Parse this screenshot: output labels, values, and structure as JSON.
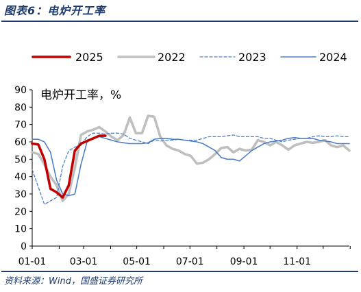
{
  "figure_title": "图表6：电炉开工率",
  "source_text": "资料来源：Wind，国盛证券研究所",
  "chart_data": {
    "type": "line",
    "title": "",
    "ylabel": "电炉开工率，%",
    "xlabel": "",
    "ylim": [
      0,
      90
    ],
    "yticks": [
      0,
      10,
      20,
      30,
      40,
      50,
      60,
      70,
      80,
      90
    ],
    "xlim": [
      "01-01",
      "12-31"
    ],
    "xticks": [
      "01-01",
      "03-01",
      "05-01",
      "07-01",
      "09-01",
      "11-01"
    ],
    "legend_position": "top",
    "grid": false,
    "series": [
      {
        "name": "2025",
        "color": "#c00000",
        "style": "solid-thick",
        "points": [
          [
            "01-01",
            59
          ],
          [
            "01-08",
            58.5
          ],
          [
            "01-15",
            50
          ],
          [
            "01-22",
            33
          ],
          [
            "01-29",
            31
          ],
          [
            "02-05",
            28
          ],
          [
            "02-12",
            35
          ],
          [
            "02-19",
            55
          ],
          [
            "02-26",
            59
          ],
          [
            "03-05",
            60.5
          ],
          [
            "03-12",
            62
          ],
          [
            "03-19",
            63.5
          ],
          [
            "03-26",
            63.5
          ]
        ]
      },
      {
        "name": "2022",
        "color": "#bfbfbf",
        "style": "solid-thick",
        "points": [
          [
            "01-01",
            54
          ],
          [
            "01-08",
            53
          ],
          [
            "01-15",
            47
          ],
          [
            "01-22",
            40
          ],
          [
            "01-29",
            35
          ],
          [
            "02-05",
            26
          ],
          [
            "02-12",
            30
          ],
          [
            "02-19",
            45
          ],
          [
            "02-26",
            64
          ],
          [
            "03-05",
            66
          ],
          [
            "03-12",
            67
          ],
          [
            "03-19",
            68.5
          ],
          [
            "03-26",
            66
          ],
          [
            "04-02",
            63
          ],
          [
            "04-09",
            61
          ],
          [
            "04-16",
            64
          ],
          [
            "04-23",
            74
          ],
          [
            "04-30",
            65
          ],
          [
            "05-07",
            65
          ],
          [
            "05-14",
            75
          ],
          [
            "05-21",
            74.5
          ],
          [
            "05-28",
            63
          ],
          [
            "06-04",
            58
          ],
          [
            "06-11",
            56
          ],
          [
            "06-18",
            55
          ],
          [
            "06-25",
            53
          ],
          [
            "07-02",
            52
          ],
          [
            "07-09",
            47.5
          ],
          [
            "07-16",
            48
          ],
          [
            "07-23",
            50
          ],
          [
            "07-30",
            53
          ],
          [
            "08-06",
            56.5
          ],
          [
            "08-13",
            57
          ],
          [
            "08-20",
            54
          ],
          [
            "08-27",
            56
          ],
          [
            "09-03",
            55
          ],
          [
            "09-10",
            55.5
          ],
          [
            "09-17",
            61
          ],
          [
            "09-24",
            60
          ],
          [
            "10-01",
            58
          ],
          [
            "10-08",
            60
          ],
          [
            "10-15",
            58
          ],
          [
            "10-22",
            55.5
          ],
          [
            "10-29",
            58
          ],
          [
            "11-05",
            59
          ],
          [
            "11-12",
            60
          ],
          [
            "11-19",
            59.5
          ],
          [
            "11-26",
            60
          ],
          [
            "12-03",
            61
          ],
          [
            "12-10",
            58
          ],
          [
            "12-17",
            57
          ],
          [
            "12-24",
            58
          ],
          [
            "12-31",
            55
          ]
        ]
      },
      {
        "name": "2023",
        "color": "#4f7fc4",
        "style": "dashed",
        "points": [
          [
            "01-01",
            44
          ],
          [
            "01-08",
            34
          ],
          [
            "01-15",
            24
          ],
          [
            "01-22",
            26
          ],
          [
            "01-29",
            28
          ],
          [
            "02-05",
            46
          ],
          [
            "02-12",
            55
          ],
          [
            "02-19",
            57
          ],
          [
            "02-26",
            58
          ],
          [
            "03-05",
            63
          ],
          [
            "03-12",
            65
          ],
          [
            "03-19",
            65
          ],
          [
            "03-26",
            64.5
          ],
          [
            "04-02",
            65
          ],
          [
            "04-09",
            65
          ],
          [
            "04-16",
            64.5
          ],
          [
            "04-23",
            62
          ],
          [
            "04-30",
            61
          ],
          [
            "05-07",
            60
          ],
          [
            "05-14",
            59
          ],
          [
            "05-21",
            61
          ],
          [
            "05-28",
            60.5
          ],
          [
            "06-04",
            61
          ],
          [
            "06-11",
            61
          ],
          [
            "06-18",
            61.5
          ],
          [
            "06-25",
            61
          ],
          [
            "07-02",
            61
          ],
          [
            "07-09",
            61
          ],
          [
            "07-16",
            62
          ],
          [
            "07-23",
            63
          ],
          [
            "07-30",
            63
          ],
          [
            "08-06",
            63
          ],
          [
            "08-13",
            63.5
          ],
          [
            "08-20",
            64
          ],
          [
            "08-27",
            63
          ],
          [
            "09-03",
            63
          ],
          [
            "09-10",
            63
          ],
          [
            "09-17",
            63
          ],
          [
            "09-24",
            62
          ],
          [
            "10-01",
            62
          ],
          [
            "10-08",
            61
          ],
          [
            "10-15",
            60
          ],
          [
            "10-22",
            61
          ],
          [
            "10-29",
            61.5
          ],
          [
            "11-05",
            62
          ],
          [
            "11-12",
            62
          ],
          [
            "11-19",
            63
          ],
          [
            "11-26",
            63.5
          ],
          [
            "12-03",
            63
          ],
          [
            "12-10",
            63
          ],
          [
            "12-17",
            63.5
          ],
          [
            "12-24",
            63
          ],
          [
            "12-31",
            63
          ]
        ]
      },
      {
        "name": "2024",
        "color": "#4f7fc4",
        "style": "solid-thin",
        "points": [
          [
            "01-01",
            61.5
          ],
          [
            "01-08",
            61.5
          ],
          [
            "01-15",
            60
          ],
          [
            "01-22",
            54
          ],
          [
            "01-29",
            38
          ],
          [
            "02-05",
            30
          ],
          [
            "02-12",
            29
          ],
          [
            "02-19",
            30
          ],
          [
            "02-26",
            47
          ],
          [
            "03-05",
            60
          ],
          [
            "03-12",
            62
          ],
          [
            "03-19",
            63
          ],
          [
            "03-26",
            62
          ],
          [
            "04-02",
            61
          ],
          [
            "04-09",
            60
          ],
          [
            "04-16",
            59.5
          ],
          [
            "04-23",
            59
          ],
          [
            "04-30",
            59
          ],
          [
            "05-07",
            59
          ],
          [
            "05-14",
            59.5
          ],
          [
            "05-21",
            61.5
          ],
          [
            "05-28",
            62
          ],
          [
            "06-04",
            62
          ],
          [
            "06-11",
            61.5
          ],
          [
            "06-18",
            61.5
          ],
          [
            "06-25",
            61
          ],
          [
            "07-02",
            60.5
          ],
          [
            "07-09",
            60
          ],
          [
            "07-16",
            59
          ],
          [
            "07-23",
            57
          ],
          [
            "07-30",
            55
          ],
          [
            "08-06",
            51
          ],
          [
            "08-13",
            50
          ],
          [
            "08-20",
            50
          ],
          [
            "08-27",
            49
          ],
          [
            "09-03",
            52
          ],
          [
            "09-10",
            55
          ],
          [
            "09-17",
            57
          ],
          [
            "09-24",
            59
          ],
          [
            "10-01",
            60
          ],
          [
            "10-08",
            60.5
          ],
          [
            "10-15",
            61
          ],
          [
            "10-22",
            62
          ],
          [
            "10-29",
            62.5
          ],
          [
            "11-05",
            62
          ],
          [
            "11-12",
            62
          ],
          [
            "11-19",
            62
          ],
          [
            "11-26",
            61
          ],
          [
            "12-03",
            60.5
          ],
          [
            "12-10",
            60
          ],
          [
            "12-17",
            59
          ],
          [
            "12-24",
            59
          ],
          [
            "12-31",
            59
          ]
        ]
      }
    ]
  }
}
